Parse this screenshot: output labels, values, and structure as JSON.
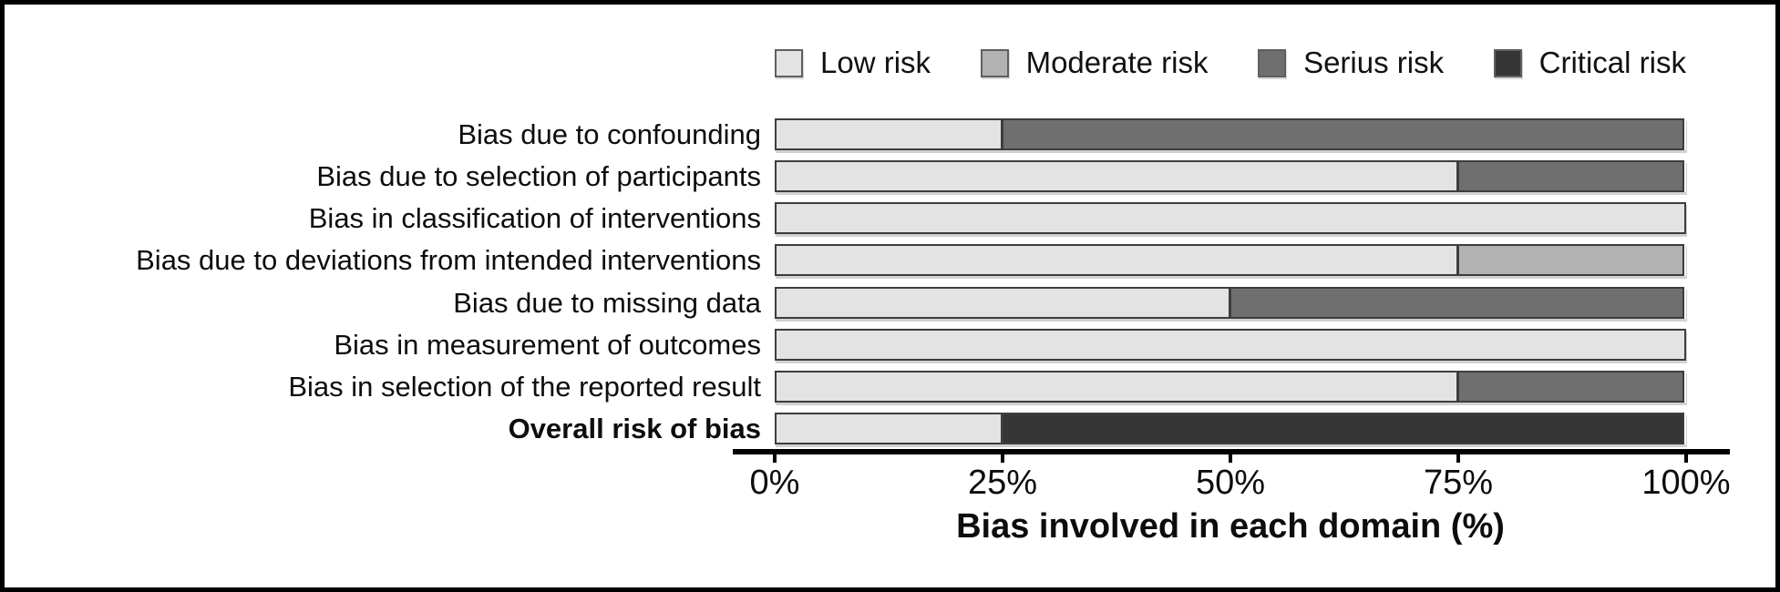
{
  "figure": {
    "background": "#ffffff",
    "border_color": "#000000"
  },
  "legend": {
    "position": "top",
    "items": [
      {
        "label": "Low risk",
        "color": "#e3e3e3"
      },
      {
        "label": "Moderate risk",
        "color": "#b2b2b2"
      },
      {
        "label": "Serius risk",
        "color": "#6f6f6f"
      },
      {
        "label": "Critical risk",
        "color": "#353535"
      }
    ]
  },
  "chart_data": {
    "type": "bar",
    "orientation": "horizontal",
    "stacked": true,
    "categories": [
      "Bias due to confounding",
      "Bias due to selection of participants",
      "Bias in classification of interventions",
      "Bias due to deviations from intended interventions",
      "Bias due to missing data",
      "Bias in measurement of outcomes",
      "Bias in selection of the reported result",
      "Overall risk of bias"
    ],
    "bold_categories": [
      "Overall risk of bias"
    ],
    "series": [
      {
        "name": "Low risk",
        "color": "#e3e3e3",
        "values": [
          25,
          75,
          100,
          75,
          50,
          100,
          75,
          25
        ]
      },
      {
        "name": "Moderate risk",
        "color": "#b2b2b2",
        "values": [
          0,
          0,
          0,
          25,
          0,
          0,
          0,
          0
        ]
      },
      {
        "name": "Serius risk",
        "color": "#6f6f6f",
        "values": [
          75,
          25,
          0,
          0,
          50,
          0,
          25,
          0
        ]
      },
      {
        "name": "Critical risk",
        "color": "#353535",
        "values": [
          0,
          0,
          0,
          0,
          0,
          0,
          0,
          75
        ]
      }
    ],
    "xlabel": "Bias involved in each domain (%)",
    "x_ticks": [
      {
        "value": 0,
        "label": "0%"
      },
      {
        "value": 25,
        "label": "25%"
      },
      {
        "value": 50,
        "label": "50%"
      },
      {
        "value": 75,
        "label": "75%"
      },
      {
        "value": 100,
        "label": "100%"
      }
    ],
    "xlim": [
      0,
      100
    ],
    "grid": false,
    "legend_position": "top"
  }
}
